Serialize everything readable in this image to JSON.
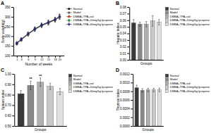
{
  "chart_data": [
    {
      "type": "line",
      "title": "A",
      "xlabel": "Number of weeks",
      "ylabel": "Body weight(g)",
      "x": [
        1,
        3,
        6,
        9,
        12,
        15,
        18,
        20
      ],
      "series": [
        {
          "name": "Normal",
          "color": "#111111",
          "marker": "circle",
          "line_style": "solid",
          "values": [
            165,
            185,
            213,
            238,
            258,
            272,
            287,
            302
          ],
          "errors": [
            7,
            8,
            9,
            10,
            10,
            11,
            11,
            12
          ]
        },
        {
          "name": "Model",
          "color": "#555555",
          "marker": "square",
          "line_style": "solid",
          "values": [
            163,
            183,
            211,
            236,
            256,
            270,
            285,
            300
          ],
          "errors": [
            7,
            8,
            9,
            10,
            10,
            11,
            11,
            12
          ]
        },
        {
          "name": "DMBA+TPA+sol",
          "color": "#cc2200",
          "marker": "triangle",
          "line_style": "solid",
          "values": [
            162,
            182,
            210,
            235,
            255,
            269,
            284,
            299
          ],
          "errors": [
            7,
            8,
            9,
            10,
            10,
            11,
            11,
            12
          ]
        },
        {
          "name": "DMBA+TPA+10mg/kg lycopene",
          "color": "#228833",
          "marker": "diamond",
          "line_style": "solid",
          "values": [
            161,
            181,
            209,
            234,
            254,
            268,
            283,
            298
          ],
          "errors": [
            7,
            8,
            9,
            10,
            10,
            11,
            11,
            12
          ]
        },
        {
          "name": "DMBA+TPA+40mg/kg lycopene",
          "color": "#222288",
          "marker": "plus",
          "line_style": "solid",
          "values": [
            163,
            183,
            211,
            236,
            256,
            270,
            285,
            300
          ],
          "errors": [
            7,
            8,
            9,
            10,
            10,
            11,
            11,
            12
          ]
        }
      ],
      "xlim": [
        -0.5,
        22
      ],
      "xticks": [
        1,
        3,
        6,
        9,
        12,
        15,
        18,
        20
      ],
      "ylim": [
        100,
        350
      ],
      "yticks": [
        100,
        150,
        200,
        250,
        300,
        350
      ],
      "legend": "right"
    },
    {
      "type": "bar",
      "title": "B",
      "xlabel": "Groups",
      "ylabel": "Hepatic index",
      "categories": [
        "Normal",
        "Model",
        "DMBA+TPA+sol",
        "DMBA+TPA+10mg/kg lycopene",
        "DMBA+TPA+40mg/kg lycopene"
      ],
      "values": [
        0.056,
        0.054,
        0.054,
        0.059,
        0.057
      ],
      "errors": [
        0.005,
        0.003,
        0.004,
        0.008,
        0.004
      ],
      "colors": [
        "#3a3a3a",
        "#888888",
        "#b0b0b0",
        "#c8c8c8",
        "#e0e0e0"
      ],
      "ylim": [
        0,
        0.08
      ],
      "yticks": [
        {
          "value": 0,
          "label": "0.00"
        },
        0.01,
        0.02,
        0.03,
        0.04,
        0.05,
        0.06,
        0.07,
        0.08
      ],
      "tick_labels": "y",
      "legend": "right"
    },
    {
      "type": "bar",
      "title": "C",
      "xlabel": "Groups",
      "ylabel": "Spleen index",
      "categories": [
        "Normal",
        "Model",
        "DMBA+TPA+sol",
        "DMBA+TPA+10mg/kg lycopene",
        "DMBA+TPA+40mg/kg lycopene"
      ],
      "values": [
        0.81,
        0.89,
        0.92,
        0.88,
        0.83
      ],
      "errors": [
        0.03,
        0.04,
        0.04,
        0.03,
        0.03
      ],
      "colors": [
        "#3a3a3a",
        "#888888",
        "#b0b0b0",
        "#c8c8c8",
        "#e0e0e0"
      ],
      "ylim": [
        0.5,
        1.0
      ],
      "yticks": [
        {
          "value": 0.5,
          "label": "0.50"
        },
        {
          "value": 0.6,
          "label": "0.60"
        },
        {
          "value": 0.7,
          "label": "0.70"
        },
        {
          "value": 0.8,
          "label": "0.80"
        },
        {
          "value": 0.9,
          "label": "0.90"
        },
        {
          "value": 1.0,
          "label": "1.00"
        }
      ],
      "annotations": [
        {
          "text": "**",
          "category": "Model"
        },
        {
          "text": "**",
          "category": "DMBA+TPA+sol"
        }
      ],
      "tick_labels": "y",
      "legend": "right"
    },
    {
      "type": "bar",
      "title": "D",
      "xlabel": "Groups",
      "ylabel": "Thymus index",
      "categories": [
        "Normal",
        "Model",
        "DMBA+TPA+sol",
        "DMBA+TPA+10mg/kg lycopene",
        "DMBA+TPA+40mg/kg lycopene"
      ],
      "values": [
        0.00088,
        0.00082,
        0.00083,
        0.00083,
        0.00083
      ],
      "errors": [
        6e-05,
        4e-05,
        4e-05,
        4e-05,
        4e-05
      ],
      "colors": [
        "#3a3a3a",
        "#888888",
        "#b0b0b0",
        "#c8c8c8",
        "#e0e0e0"
      ],
      "ylim": [
        0,
        0.0012
      ],
      "yticks": [
        {
          "value": 0,
          "label": "0.0000"
        },
        0.0002,
        0.0004,
        0.0006,
        0.0008,
        {
          "value": 0.001,
          "label": "0.0010"
        },
        0.0012
      ],
      "tick_labels": "y",
      "legend": "right"
    }
  ]
}
